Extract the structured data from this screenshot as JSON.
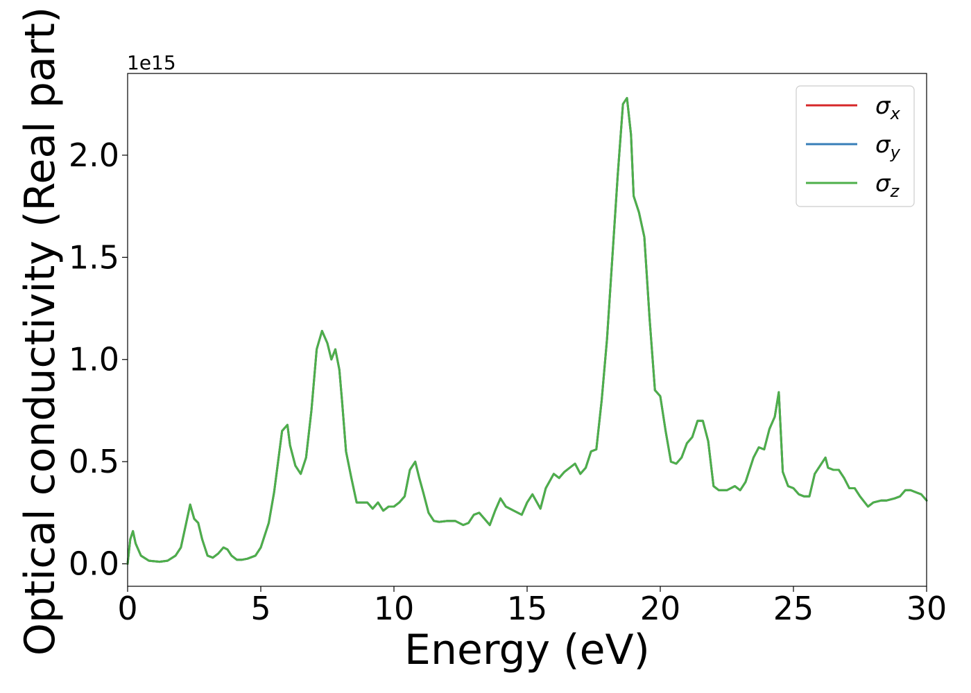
{
  "chart_data": {
    "type": "line",
    "xlabel": "Energy (eV)",
    "ylabel": "Optical conductivity (Real part)",
    "y_offset_label": "1e15",
    "xlim": [
      0,
      30
    ],
    "ylim": [
      -0.11,
      2.4
    ],
    "x_ticks": [
      0,
      5,
      10,
      15,
      20,
      25,
      30
    ],
    "x_tick_labels": [
      "0",
      "5",
      "10",
      "15",
      "20",
      "25",
      "30"
    ],
    "y_ticks": [
      0.0,
      0.5,
      1.0,
      1.5,
      2.0
    ],
    "y_tick_labels": [
      "0.0",
      "0.5",
      "1.0",
      "1.5",
      "2.0"
    ],
    "grid": false,
    "legend_position": "top-right",
    "x": [
      0,
      0.1,
      0.2,
      0.3,
      0.5,
      0.8,
      1.2,
      1.5,
      1.8,
      2.0,
      2.2,
      2.35,
      2.5,
      2.65,
      2.8,
      3.0,
      3.2,
      3.4,
      3.6,
      3.75,
      3.9,
      4.1,
      4.3,
      4.5,
      4.8,
      5.0,
      5.3,
      5.5,
      5.8,
      6.0,
      6.1,
      6.3,
      6.5,
      6.7,
      6.9,
      7.1,
      7.3,
      7.5,
      7.65,
      7.8,
      7.95,
      8.05,
      8.2,
      8.4,
      8.6,
      8.8,
      9.0,
      9.2,
      9.4,
      9.6,
      9.8,
      10.0,
      10.2,
      10.4,
      10.6,
      10.8,
      10.95,
      11.1,
      11.3,
      11.5,
      11.7,
      12.0,
      12.3,
      12.6,
      12.8,
      13.0,
      13.2,
      13.4,
      13.6,
      13.8,
      14.0,
      14.2,
      14.5,
      14.8,
      15.0,
      15.2,
      15.5,
      15.7,
      16.0,
      16.2,
      16.4,
      16.6,
      16.8,
      17.0,
      17.2,
      17.4,
      17.6,
      17.8,
      18.0,
      18.2,
      18.4,
      18.6,
      18.75,
      18.9,
      19.0,
      19.2,
      19.4,
      19.6,
      19.8,
      20.0,
      20.2,
      20.4,
      20.6,
      20.8,
      21.0,
      21.2,
      21.4,
      21.6,
      21.8,
      22.0,
      22.2,
      22.5,
      22.8,
      23.0,
      23.2,
      23.5,
      23.7,
      23.9,
      24.1,
      24.3,
      24.45,
      24.6,
      24.8,
      25.0,
      25.2,
      25.4,
      25.6,
      25.8,
      26.0,
      26.2,
      26.3,
      26.5,
      26.7,
      26.9,
      27.1,
      27.3,
      27.5,
      27.8,
      28.0,
      28.3,
      28.5,
      28.8,
      29.0,
      29.2,
      29.4,
      29.6,
      29.8,
      30.0
    ],
    "series": [
      {
        "name": "σx",
        "color": "#d62728",
        "values": [
          0.0,
          0.12,
          0.16,
          0.1,
          0.04,
          0.015,
          0.01,
          0.015,
          0.04,
          0.08,
          0.2,
          0.29,
          0.22,
          0.2,
          0.12,
          0.04,
          0.03,
          0.05,
          0.08,
          0.07,
          0.04,
          0.02,
          0.02,
          0.025,
          0.04,
          0.08,
          0.2,
          0.35,
          0.65,
          0.68,
          0.58,
          0.48,
          0.44,
          0.52,
          0.75,
          1.05,
          1.14,
          1.08,
          1.0,
          1.05,
          0.95,
          0.8,
          0.55,
          0.42,
          0.3,
          0.3,
          0.3,
          0.27,
          0.3,
          0.26,
          0.28,
          0.28,
          0.3,
          0.33,
          0.46,
          0.5,
          0.42,
          0.35,
          0.25,
          0.21,
          0.205,
          0.21,
          0.21,
          0.19,
          0.2,
          0.24,
          0.25,
          0.22,
          0.19,
          0.26,
          0.32,
          0.28,
          0.26,
          0.24,
          0.3,
          0.34,
          0.27,
          0.37,
          0.44,
          0.42,
          0.45,
          0.47,
          0.49,
          0.44,
          0.47,
          0.55,
          0.56,
          0.8,
          1.1,
          1.5,
          1.9,
          2.25,
          2.28,
          2.1,
          1.8,
          1.72,
          1.6,
          1.2,
          0.85,
          0.82,
          0.65,
          0.5,
          0.49,
          0.52,
          0.59,
          0.62,
          0.7,
          0.7,
          0.6,
          0.38,
          0.36,
          0.36,
          0.38,
          0.36,
          0.4,
          0.52,
          0.57,
          0.56,
          0.66,
          0.72,
          0.84,
          0.45,
          0.38,
          0.37,
          0.34,
          0.33,
          0.33,
          0.44,
          0.48,
          0.52,
          0.47,
          0.46,
          0.46,
          0.42,
          0.37,
          0.37,
          0.33,
          0.28,
          0.3,
          0.31,
          0.31,
          0.32,
          0.33,
          0.36,
          0.36,
          0.35,
          0.34,
          0.31
        ]
      },
      {
        "name": "σy",
        "color": "#377eb8",
        "values": [
          0.0,
          0.12,
          0.16,
          0.1,
          0.04,
          0.015,
          0.01,
          0.015,
          0.04,
          0.08,
          0.2,
          0.29,
          0.22,
          0.2,
          0.12,
          0.04,
          0.03,
          0.05,
          0.08,
          0.07,
          0.04,
          0.02,
          0.02,
          0.025,
          0.04,
          0.08,
          0.2,
          0.35,
          0.65,
          0.68,
          0.58,
          0.48,
          0.44,
          0.52,
          0.75,
          1.05,
          1.14,
          1.08,
          1.0,
          1.05,
          0.95,
          0.8,
          0.55,
          0.42,
          0.3,
          0.3,
          0.3,
          0.27,
          0.3,
          0.26,
          0.28,
          0.28,
          0.3,
          0.33,
          0.46,
          0.5,
          0.42,
          0.35,
          0.25,
          0.21,
          0.205,
          0.21,
          0.21,
          0.19,
          0.2,
          0.24,
          0.25,
          0.22,
          0.19,
          0.26,
          0.32,
          0.28,
          0.26,
          0.24,
          0.3,
          0.34,
          0.27,
          0.37,
          0.44,
          0.42,
          0.45,
          0.47,
          0.49,
          0.44,
          0.47,
          0.55,
          0.56,
          0.8,
          1.1,
          1.5,
          1.9,
          2.25,
          2.28,
          2.1,
          1.8,
          1.72,
          1.6,
          1.2,
          0.85,
          0.82,
          0.65,
          0.5,
          0.49,
          0.52,
          0.59,
          0.62,
          0.7,
          0.7,
          0.6,
          0.38,
          0.36,
          0.36,
          0.38,
          0.36,
          0.4,
          0.52,
          0.57,
          0.56,
          0.66,
          0.72,
          0.84,
          0.45,
          0.38,
          0.37,
          0.34,
          0.33,
          0.33,
          0.44,
          0.48,
          0.52,
          0.47,
          0.46,
          0.46,
          0.42,
          0.37,
          0.37,
          0.33,
          0.28,
          0.3,
          0.31,
          0.31,
          0.32,
          0.33,
          0.36,
          0.36,
          0.35,
          0.34,
          0.31
        ]
      },
      {
        "name": "σz",
        "color": "#4daf4a",
        "values": [
          0.0,
          0.12,
          0.16,
          0.1,
          0.04,
          0.015,
          0.01,
          0.015,
          0.04,
          0.08,
          0.2,
          0.29,
          0.22,
          0.2,
          0.12,
          0.04,
          0.03,
          0.05,
          0.08,
          0.07,
          0.04,
          0.02,
          0.02,
          0.025,
          0.04,
          0.08,
          0.2,
          0.35,
          0.65,
          0.68,
          0.58,
          0.48,
          0.44,
          0.52,
          0.75,
          1.05,
          1.14,
          1.08,
          1.0,
          1.05,
          0.95,
          0.8,
          0.55,
          0.42,
          0.3,
          0.3,
          0.3,
          0.27,
          0.3,
          0.26,
          0.28,
          0.28,
          0.3,
          0.33,
          0.46,
          0.5,
          0.42,
          0.35,
          0.25,
          0.21,
          0.205,
          0.21,
          0.21,
          0.19,
          0.2,
          0.24,
          0.25,
          0.22,
          0.19,
          0.26,
          0.32,
          0.28,
          0.26,
          0.24,
          0.3,
          0.34,
          0.27,
          0.37,
          0.44,
          0.42,
          0.45,
          0.47,
          0.49,
          0.44,
          0.47,
          0.55,
          0.56,
          0.8,
          1.1,
          1.5,
          1.9,
          2.25,
          2.28,
          2.1,
          1.8,
          1.72,
          1.6,
          1.2,
          0.85,
          0.82,
          0.65,
          0.5,
          0.49,
          0.52,
          0.59,
          0.62,
          0.7,
          0.7,
          0.6,
          0.38,
          0.36,
          0.36,
          0.38,
          0.36,
          0.4,
          0.52,
          0.57,
          0.56,
          0.66,
          0.72,
          0.84,
          0.45,
          0.38,
          0.37,
          0.34,
          0.33,
          0.33,
          0.44,
          0.48,
          0.52,
          0.47,
          0.46,
          0.46,
          0.42,
          0.37,
          0.37,
          0.33,
          0.28,
          0.3,
          0.31,
          0.31,
          0.32,
          0.33,
          0.36,
          0.36,
          0.35,
          0.34,
          0.31
        ]
      }
    ],
    "legend": [
      {
        "base": "σ",
        "sub": "x",
        "color": "#d62728"
      },
      {
        "base": "σ",
        "sub": "y",
        "color": "#377eb8"
      },
      {
        "base": "σ",
        "sub": "z",
        "color": "#4daf4a"
      }
    ]
  }
}
